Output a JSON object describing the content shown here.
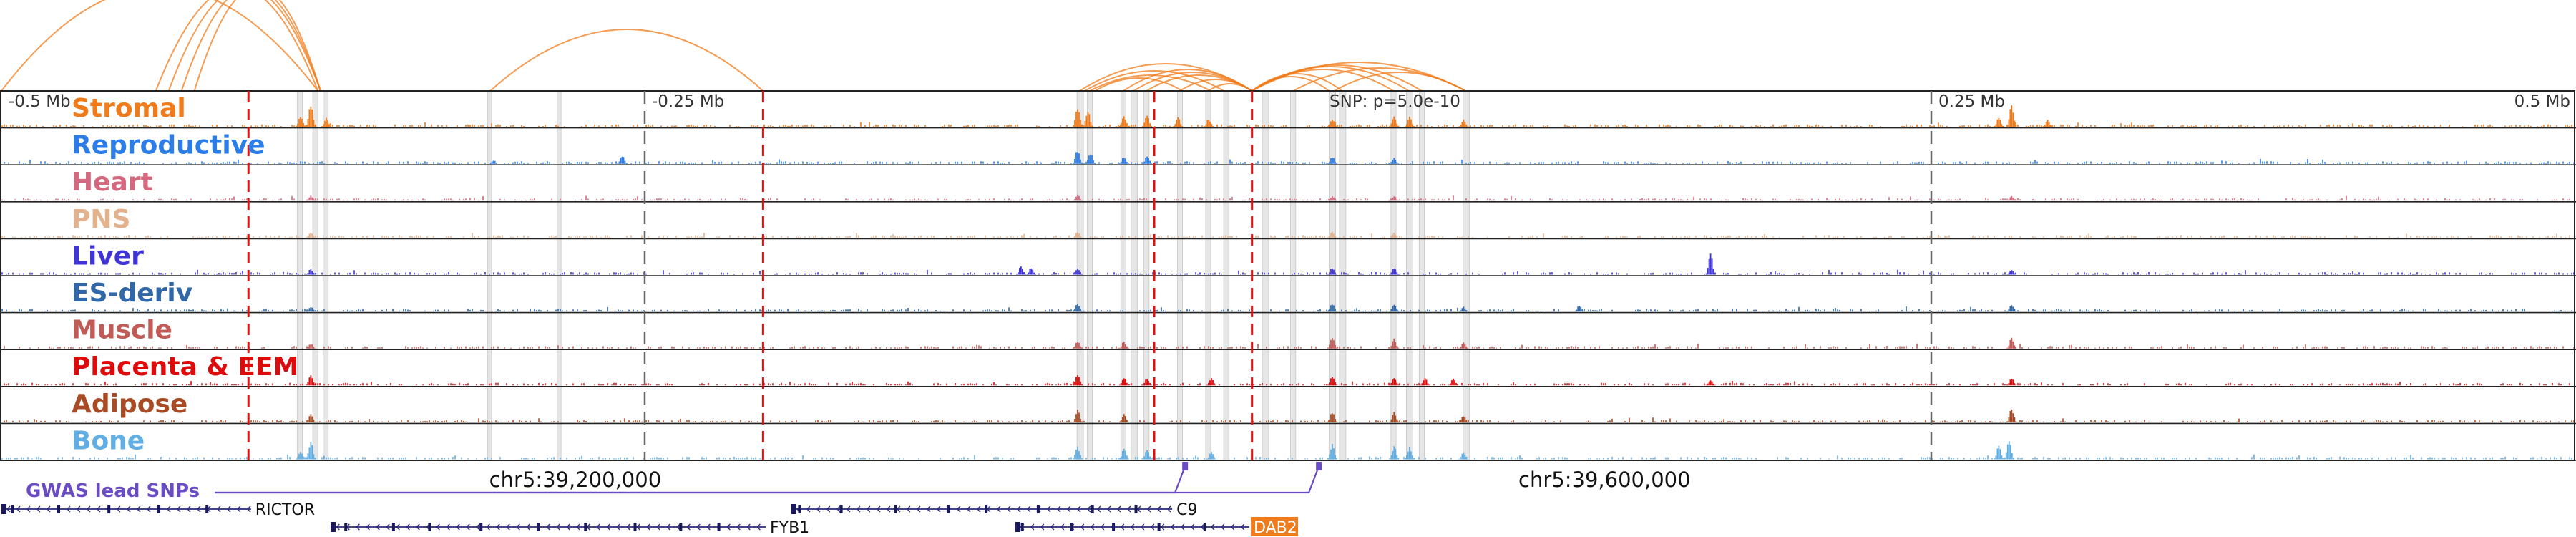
{
  "chart_data": {
    "type": "area",
    "view": {
      "chromosome": "chr5",
      "start": 38977000,
      "end": 39977000
    },
    "tick_labels": [
      {
        "pos": 38977000,
        "label": "-0.5 Mb"
      },
      {
        "pos": 39227000,
        "label": "-0.25 Mb"
      },
      {
        "pos": 39727000,
        "label": "0.25 Mb"
      },
      {
        "pos": 39977000,
        "label": "0.5 Mb"
      }
    ],
    "center_label": {
      "pos": 39477000,
      "label": "SNP: p=5.0e-10"
    },
    "coordinate_labels": [
      {
        "pos": 39200000,
        "label": "chr5:39,200,000"
      },
      {
        "pos": 39600000,
        "label": "chr5:39,600,000"
      }
    ],
    "red_dashed_lines": [
      39073000,
      39273000,
      39425000,
      39463000
    ],
    "gray_dashed_lines": [
      39227000,
      39727000
    ],
    "highlight_regions": [
      [
        39092000,
        39094000
      ],
      [
        39098000,
        39100000
      ],
      [
        39102000,
        39104000
      ],
      [
        39166000,
        39167500
      ],
      [
        39193000,
        39194500
      ],
      [
        39395000,
        39397500
      ],
      [
        39399000,
        39401000
      ],
      [
        39412000,
        39414000
      ],
      [
        39416000,
        39418500
      ],
      [
        39421000,
        39423000
      ],
      [
        39434000,
        39436000
      ],
      [
        39445000,
        39447000
      ],
      [
        39452000,
        39454000
      ],
      [
        39467000,
        39469500
      ],
      [
        39478000,
        39480000
      ],
      [
        39493000,
        39495500
      ],
      [
        39497000,
        39499500
      ],
      [
        39517000,
        39519000
      ],
      [
        39523000,
        39525500
      ],
      [
        39528000,
        39530000
      ],
      [
        39545000,
        39547500
      ]
    ],
    "arcs": [
      {
        "from": 38977000,
        "to": 39100000,
        "height": 145
      },
      {
        "from": 39037000,
        "to": 39100000,
        "height": 145
      },
      {
        "from": 39042000,
        "to": 39101000,
        "height": 145
      },
      {
        "from": 39047000,
        "to": 39101000,
        "height": 145
      },
      {
        "from": 39052000,
        "to": 39101000,
        "height": 145
      },
      {
        "from": 39167000,
        "to": 39273000,
        "height": 86
      },
      {
        "from": 39396000,
        "to": 39463000,
        "height": 38
      },
      {
        "from": 39398000,
        "to": 39452000,
        "height": 28
      },
      {
        "from": 39400000,
        "to": 39447000,
        "height": 22
      },
      {
        "from": 39402000,
        "to": 39436000,
        "height": 18
      },
      {
        "from": 39413000,
        "to": 39463000,
        "height": 30
      },
      {
        "from": 39417000,
        "to": 39463000,
        "height": 26
      },
      {
        "from": 39422000,
        "to": 39463000,
        "height": 22
      },
      {
        "from": 39435000,
        "to": 39463000,
        "height": 16
      },
      {
        "from": 39446000,
        "to": 39463000,
        "height": 10
      },
      {
        "from": 39463000,
        "to": 39493000,
        "height": 20
      },
      {
        "from": 39463000,
        "to": 39498000,
        "height": 24
      },
      {
        "from": 39463000,
        "to": 39518000,
        "height": 30
      },
      {
        "from": 39463000,
        "to": 39524000,
        "height": 34
      },
      {
        "from": 39463000,
        "to": 39529000,
        "height": 36
      },
      {
        "from": 39463000,
        "to": 39546000,
        "height": 40
      },
      {
        "from": 39479000,
        "to": 39546000,
        "height": 32
      },
      {
        "from": 39495000,
        "to": 39546000,
        "height": 26
      }
    ],
    "tracks": [
      {
        "name": "Stromal",
        "color": "#f07b1a",
        "peaks": [
          [
            39097000,
            1.0
          ],
          [
            39093000,
            0.45
          ],
          [
            39103000,
            0.4
          ],
          [
            39395000,
            0.9
          ],
          [
            39399000,
            0.7
          ],
          [
            39413000,
            0.45
          ],
          [
            39422000,
            0.5
          ],
          [
            39434000,
            0.4
          ],
          [
            39446000,
            0.35
          ],
          [
            39494000,
            0.35
          ],
          [
            39518000,
            0.45
          ],
          [
            39524000,
            0.4
          ],
          [
            39545000,
            0.3
          ],
          [
            39758000,
            0.95
          ],
          [
            39753000,
            0.4
          ],
          [
            39772000,
            0.3
          ]
        ]
      },
      {
        "name": "Reproductive",
        "color": "#2c7de8",
        "peaks": [
          [
            39395000,
            0.6
          ],
          [
            39400000,
            0.45
          ],
          [
            39413000,
            0.3
          ],
          [
            39422000,
            0.35
          ],
          [
            39494000,
            0.3
          ],
          [
            39518000,
            0.25
          ],
          [
            39168000,
            0.15
          ],
          [
            39218000,
            0.35
          ]
        ]
      },
      {
        "name": "Heart",
        "color": "#d4687e",
        "peaks": [
          [
            39097000,
            0.2
          ],
          [
            39395000,
            0.25
          ],
          [
            39494000,
            0.2
          ],
          [
            39518000,
            0.2
          ],
          [
            39758000,
            0.2
          ]
        ]
      },
      {
        "name": "PNS",
        "color": "#e3b28c",
        "peaks": [
          [
            39097000,
            0.2
          ],
          [
            39395000,
            0.25
          ],
          [
            39494000,
            0.25
          ],
          [
            39518000,
            0.2
          ]
        ]
      },
      {
        "name": "Liver",
        "color": "#3f35d6",
        "peaks": [
          [
            39097000,
            0.25
          ],
          [
            39373000,
            0.35
          ],
          [
            39377000,
            0.3
          ],
          [
            39395000,
            0.3
          ],
          [
            39494000,
            0.3
          ],
          [
            39518000,
            0.3
          ],
          [
            39641000,
            0.85
          ],
          [
            39758000,
            0.2
          ]
        ]
      },
      {
        "name": "ES-deriv",
        "color": "#2f67a8",
        "peaks": [
          [
            39097000,
            0.2
          ],
          [
            39395000,
            0.35
          ],
          [
            39494000,
            0.35
          ],
          [
            39518000,
            0.3
          ],
          [
            39545000,
            0.2
          ],
          [
            39590000,
            0.25
          ],
          [
            39758000,
            0.3
          ]
        ]
      },
      {
        "name": "Muscle",
        "color": "#c25a55",
        "peaks": [
          [
            39097000,
            0.2
          ],
          [
            39395000,
            0.3
          ],
          [
            39413000,
            0.3
          ],
          [
            39494000,
            0.45
          ],
          [
            39518000,
            0.4
          ],
          [
            39545000,
            0.25
          ],
          [
            39758000,
            0.45
          ]
        ]
      },
      {
        "name": "Placenta & EEM",
        "color": "#dd0b0b",
        "peaks": [
          [
            39097000,
            0.45
          ],
          [
            39395000,
            0.5
          ],
          [
            39413000,
            0.35
          ],
          [
            39422000,
            0.3
          ],
          [
            39447000,
            0.3
          ],
          [
            39494000,
            0.4
          ],
          [
            39518000,
            0.35
          ],
          [
            39530000,
            0.3
          ],
          [
            39541000,
            0.3
          ],
          [
            39641000,
            0.25
          ],
          [
            39758000,
            0.3
          ]
        ]
      },
      {
        "name": "Adipose",
        "color": "#a84b24",
        "peaks": [
          [
            39097000,
            0.35
          ],
          [
            39395000,
            0.5
          ],
          [
            39413000,
            0.35
          ],
          [
            39494000,
            0.45
          ],
          [
            39518000,
            0.45
          ],
          [
            39545000,
            0.3
          ],
          [
            39758000,
            0.6
          ]
        ]
      },
      {
        "name": "Bone",
        "color": "#60aee3",
        "peaks": [
          [
            39097000,
            0.75
          ],
          [
            39093000,
            0.35
          ],
          [
            39395000,
            0.55
          ],
          [
            39413000,
            0.45
          ],
          [
            39422000,
            0.4
          ],
          [
            39447000,
            0.3
          ],
          [
            39494000,
            0.6
          ],
          [
            39518000,
            0.55
          ],
          [
            39524000,
            0.5
          ],
          [
            39545000,
            0.3
          ],
          [
            39757000,
            0.85
          ],
          [
            39753000,
            0.55
          ]
        ]
      }
    ],
    "gwas": {
      "label": "GWAS lead SNPs",
      "color": "#6a4bc6",
      "snps": [
        39437000,
        39489000
      ]
    },
    "genes": [
      {
        "name": "RICTOR",
        "start": 38977000,
        "end": 39074000,
        "strand": "-",
        "row": 0,
        "highlight": false
      },
      {
        "name": "C9",
        "start": 39284000,
        "end": 39432000,
        "strand": "-",
        "row": 0,
        "highlight": false
      },
      {
        "name": "FYB1",
        "start": 39105000,
        "end": 39274000,
        "strand": "-",
        "row": 1,
        "highlight": false
      },
      {
        "name": "DAB2",
        "start": 39371000,
        "end": 39462000,
        "strand": "-",
        "row": 1,
        "highlight": true,
        "highlight_color": "#f07b1a"
      }
    ]
  }
}
